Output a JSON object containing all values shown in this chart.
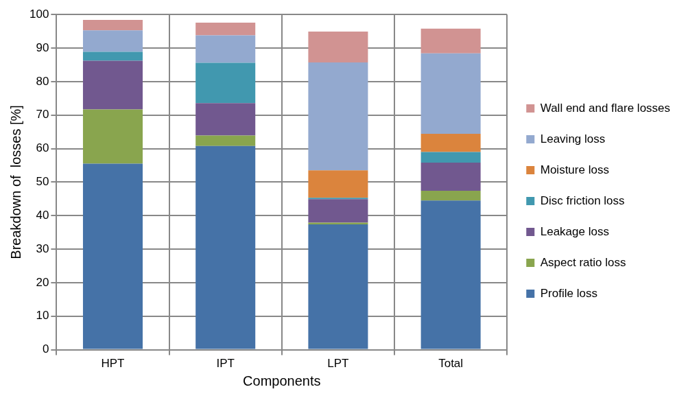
{
  "chart_data": {
    "type": "bar",
    "stacked": true,
    "xlabel": "Components",
    "ylabel": "Breakdown of  losses [%]",
    "categories": [
      "HPT",
      "IPT",
      "LPT",
      "Total"
    ],
    "series": [
      {
        "name": "Profile loss",
        "color": "#4572a7",
        "values": [
          55.5,
          60.8,
          37.4,
          44.5
        ]
      },
      {
        "name": "Aspect ratio loss",
        "color": "#89a54e",
        "values": [
          16.2,
          3.1,
          0.5,
          2.9
        ]
      },
      {
        "name": "Leakage loss",
        "color": "#71588f",
        "values": [
          14.5,
          9.7,
          7.0,
          8.4
        ]
      },
      {
        "name": "Disc friction loss",
        "color": "#4198af",
        "values": [
          2.7,
          12.0,
          0.4,
          3.2
        ]
      },
      {
        "name": "Moisture loss",
        "color": "#db843d",
        "values": [
          0,
          0,
          8.2,
          5.4
        ]
      },
      {
        "name": "Leaving loss",
        "color": "#93a9cf",
        "values": [
          6.4,
          8.2,
          32.2,
          24.0
        ]
      },
      {
        "name": "Wall end and flare losses",
        "color": "#d19392",
        "values": [
          3.1,
          3.8,
          9.2,
          7.4
        ]
      }
    ],
    "ylim": [
      0,
      100
    ],
    "yticks": [
      0,
      10,
      20,
      30,
      40,
      50,
      60,
      70,
      80,
      90,
      100
    ],
    "grid": true,
    "legend": "right"
  }
}
